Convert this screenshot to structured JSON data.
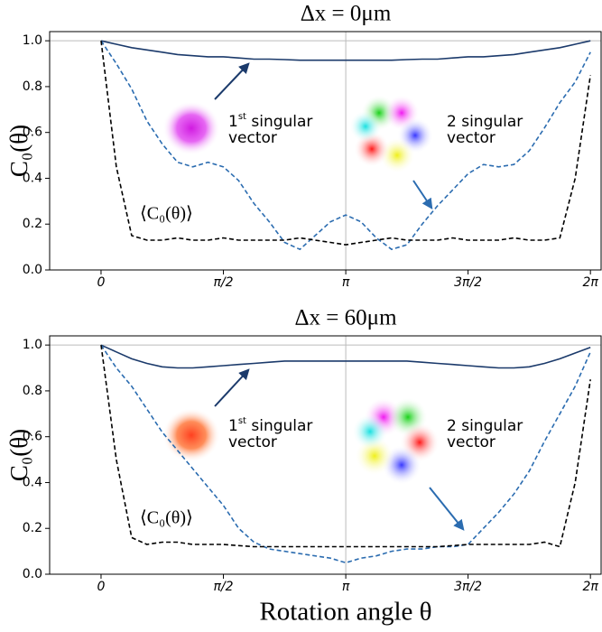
{
  "chart_data": [
    {
      "type": "line",
      "title": "Δx = 0μm",
      "ylabel": "C₀(θ)",
      "x": [
        0,
        0.196,
        0.393,
        0.589,
        0.785,
        0.982,
        1.178,
        1.374,
        1.571,
        1.767,
        1.963,
        2.16,
        2.356,
        2.553,
        2.749,
        2.945,
        3.142,
        3.338,
        3.534,
        3.731,
        3.927,
        4.123,
        4.32,
        4.516,
        4.712,
        4.909,
        5.105,
        5.301,
        5.498,
        5.694,
        5.89,
        6.087,
        6.283
      ],
      "xlim": [
        -0.66,
        6.42
      ],
      "xticks": [
        {
          "value": 0,
          "label": "0"
        },
        {
          "value": 1.571,
          "label": "π/2"
        },
        {
          "value": 3.142,
          "label": "π"
        },
        {
          "value": 4.712,
          "label": "3π/2"
        },
        {
          "value": 6.283,
          "label": "2π"
        }
      ],
      "ylim": [
        0,
        1.04
      ],
      "yticks": [
        {
          "value": 0,
          "label": "0.0"
        },
        {
          "value": 0.2,
          "label": "0.2"
        },
        {
          "value": 0.4,
          "label": "0.4"
        },
        {
          "value": 0.6,
          "label": "0.6"
        },
        {
          "value": 0.8,
          "label": "0.8"
        },
        {
          "value": 1,
          "label": "1.0"
        }
      ],
      "hline": 1,
      "vline": 3.142,
      "series": [
        {
          "color": "#1b3a6b",
          "linestyle": "solid",
          "values": [
            1.0,
            0.985,
            0.97,
            0.96,
            0.95,
            0.94,
            0.935,
            0.93,
            0.93,
            0.925,
            0.92,
            0.92,
            0.918,
            0.915,
            0.915,
            0.915,
            0.915,
            0.915,
            0.915,
            0.915,
            0.918,
            0.92,
            0.92,
            0.925,
            0.93,
            0.93,
            0.935,
            0.94,
            0.95,
            0.96,
            0.97,
            0.985,
            1.0
          ]
        },
        {
          "color": "#2b6cb0",
          "linestyle": "dashed",
          "values": [
            1.0,
            0.9,
            0.79,
            0.65,
            0.55,
            0.47,
            0.45,
            0.47,
            0.45,
            0.39,
            0.29,
            0.21,
            0.12,
            0.09,
            0.15,
            0.21,
            0.24,
            0.21,
            0.14,
            0.09,
            0.11,
            0.2,
            0.28,
            0.35,
            0.42,
            0.46,
            0.45,
            0.46,
            0.52,
            0.62,
            0.73,
            0.82,
            0.95
          ]
        },
        {
          "color": "#000000",
          "linestyle": "dashed",
          "values": [
            1.0,
            0.45,
            0.15,
            0.13,
            0.13,
            0.14,
            0.13,
            0.13,
            0.14,
            0.13,
            0.13,
            0.13,
            0.13,
            0.14,
            0.13,
            0.12,
            0.11,
            0.12,
            0.13,
            0.14,
            0.13,
            0.13,
            0.13,
            0.14,
            0.13,
            0.13,
            0.13,
            0.14,
            0.13,
            0.13,
            0.14,
            0.4,
            0.85
          ]
        }
      ],
      "annotations": {
        "first": {
          "num": "1",
          "sup": "st",
          "word": " singular",
          "line2": "vector"
        },
        "second": {
          "line1": "2  singular",
          "line2": "vector"
        },
        "mean": "⟨C₀(θ)⟩"
      }
    },
    {
      "type": "line",
      "title": "Δx = 60μm",
      "ylabel": "C₀(θ)",
      "xlabel": "Rotation angle θ",
      "x": [
        0,
        0.196,
        0.393,
        0.589,
        0.785,
        0.982,
        1.178,
        1.374,
        1.571,
        1.767,
        1.963,
        2.16,
        2.356,
        2.553,
        2.749,
        2.945,
        3.142,
        3.338,
        3.534,
        3.731,
        3.927,
        4.123,
        4.32,
        4.516,
        4.712,
        4.909,
        5.105,
        5.301,
        5.498,
        5.694,
        5.89,
        6.087,
        6.283
      ],
      "xlim": [
        -0.66,
        6.42
      ],
      "xticks": [
        {
          "value": 0,
          "label": "0"
        },
        {
          "value": 1.571,
          "label": "π/2"
        },
        {
          "value": 3.142,
          "label": "π"
        },
        {
          "value": 4.712,
          "label": "3π/2"
        },
        {
          "value": 6.283,
          "label": "2π"
        }
      ],
      "ylim": [
        0,
        1.04
      ],
      "yticks": [
        {
          "value": 0,
          "label": "0.0"
        },
        {
          "value": 0.2,
          "label": "0.2"
        },
        {
          "value": 0.4,
          "label": "0.4"
        },
        {
          "value": 0.6,
          "label": "0.6"
        },
        {
          "value": 0.8,
          "label": "0.8"
        },
        {
          "value": 1,
          "label": "1.0"
        }
      ],
      "hline": 1,
      "vline": 3.142,
      "series": [
        {
          "color": "#1b3a6b",
          "linestyle": "solid",
          "values": [
            1.0,
            0.97,
            0.94,
            0.92,
            0.905,
            0.9,
            0.9,
            0.905,
            0.91,
            0.915,
            0.92,
            0.925,
            0.93,
            0.93,
            0.93,
            0.93,
            0.93,
            0.93,
            0.93,
            0.93,
            0.93,
            0.925,
            0.92,
            0.915,
            0.91,
            0.905,
            0.9,
            0.9,
            0.905,
            0.92,
            0.94,
            0.965,
            0.99
          ]
        },
        {
          "color": "#2b6cb0",
          "linestyle": "dashed",
          "values": [
            1.0,
            0.9,
            0.82,
            0.72,
            0.62,
            0.54,
            0.46,
            0.38,
            0.3,
            0.2,
            0.14,
            0.11,
            0.1,
            0.09,
            0.08,
            0.07,
            0.05,
            0.07,
            0.08,
            0.1,
            0.11,
            0.11,
            0.12,
            0.12,
            0.13,
            0.2,
            0.27,
            0.35,
            0.45,
            0.58,
            0.7,
            0.82,
            0.97
          ]
        },
        {
          "color": "#000000",
          "linestyle": "dashed",
          "values": [
            1.0,
            0.5,
            0.16,
            0.13,
            0.14,
            0.14,
            0.13,
            0.13,
            0.13,
            0.125,
            0.12,
            0.12,
            0.12,
            0.12,
            0.12,
            0.12,
            0.12,
            0.12,
            0.12,
            0.12,
            0.12,
            0.12,
            0.12,
            0.125,
            0.13,
            0.13,
            0.13,
            0.13,
            0.13,
            0.14,
            0.12,
            0.4,
            0.85
          ]
        }
      ],
      "annotations": {
        "first": {
          "num": "1",
          "sup": "st",
          "word": " singular",
          "line2": "vector"
        },
        "second": {
          "line1": "2  singular",
          "line2": "vector"
        },
        "mean": "⟨C₀(θ)⟩"
      }
    }
  ]
}
